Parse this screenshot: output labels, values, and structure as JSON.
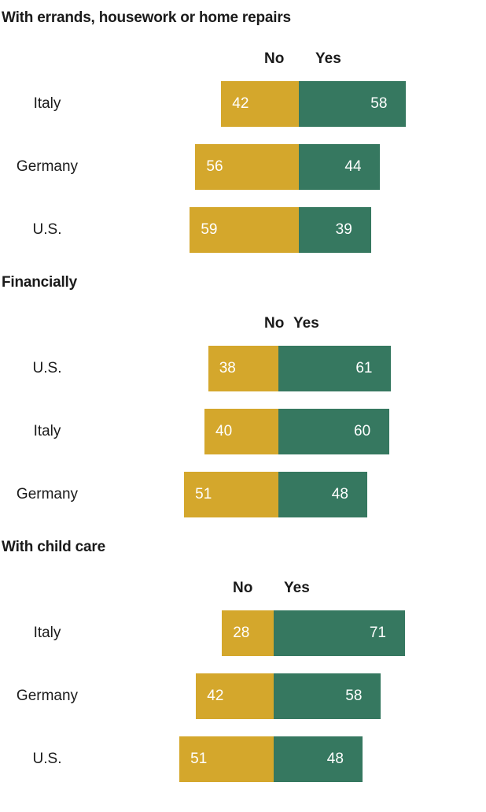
{
  "chart_data": [
    {
      "type": "bar",
      "title": "With errands, housework or home repairs",
      "legend": {
        "no": "No",
        "yes": "Yes"
      },
      "categories": [
        "Italy",
        "Germany",
        "U.S."
      ],
      "series": [
        {
          "name": "No",
          "values": [
            42,
            56,
            59
          ],
          "color": "#d4a72c"
        },
        {
          "name": "Yes",
          "values": [
            58,
            44,
            39
          ],
          "color": "#367860"
        }
      ]
    },
    {
      "type": "bar",
      "title": "Financially",
      "legend": {
        "no": "No",
        "yes": "Yes"
      },
      "categories": [
        "U.S.",
        "Italy",
        "Germany"
      ],
      "series": [
        {
          "name": "No",
          "values": [
            38,
            40,
            51
          ],
          "color": "#d4a72c"
        },
        {
          "name": "Yes",
          "values": [
            61,
            60,
            48
          ],
          "color": "#367860"
        }
      ]
    },
    {
      "type": "bar",
      "title": "With child care",
      "legend": {
        "no": "No",
        "yes": "Yes"
      },
      "categories": [
        "Italy",
        "Germany",
        "U.S."
      ],
      "series": [
        {
          "name": "No",
          "values": [
            28,
            42,
            51
          ],
          "color": "#d4a72c"
        },
        {
          "name": "Yes",
          "values": [
            71,
            58,
            48
          ],
          "color": "#367860"
        }
      ]
    }
  ]
}
